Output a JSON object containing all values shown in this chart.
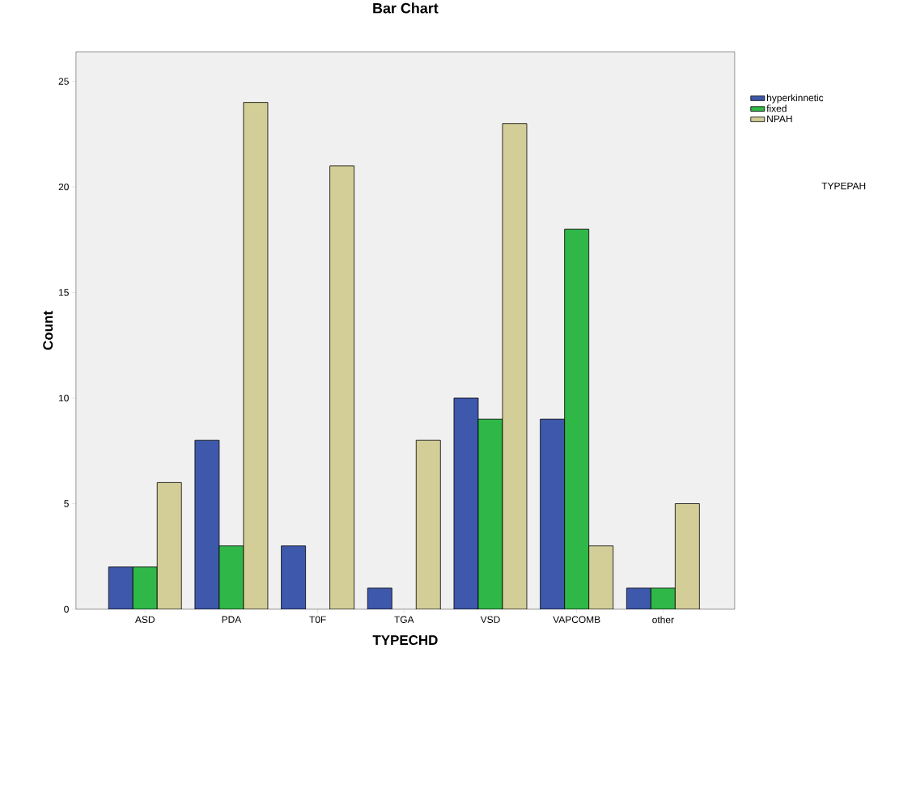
{
  "chart_data": {
    "type": "bar",
    "title": "Bar Chart",
    "xlabel": "TYPECHD",
    "ylabel": "Count",
    "legend_title": "TYPEPAH",
    "categories": [
      "ASD",
      "PDA",
      "T0F",
      "TGA",
      "VSD",
      "VAPCOMB",
      "other"
    ],
    "series": [
      {
        "name": "hyperkinnetic",
        "color": "#3e58ac",
        "values": [
          2,
          8,
          3,
          1,
          10,
          9,
          1
        ]
      },
      {
        "name": "fixed",
        "color": "#2fb848",
        "values": [
          2,
          3,
          null,
          null,
          9,
          18,
          1
        ]
      },
      {
        "name": "NPAH",
        "color": "#d3ce97",
        "values": [
          6,
          24,
          21,
          8,
          23,
          3,
          5
        ]
      }
    ],
    "ylim": [
      0,
      26.4
    ],
    "yticks": [
      0,
      5,
      10,
      15,
      20,
      25
    ],
    "legend": "top right"
  }
}
